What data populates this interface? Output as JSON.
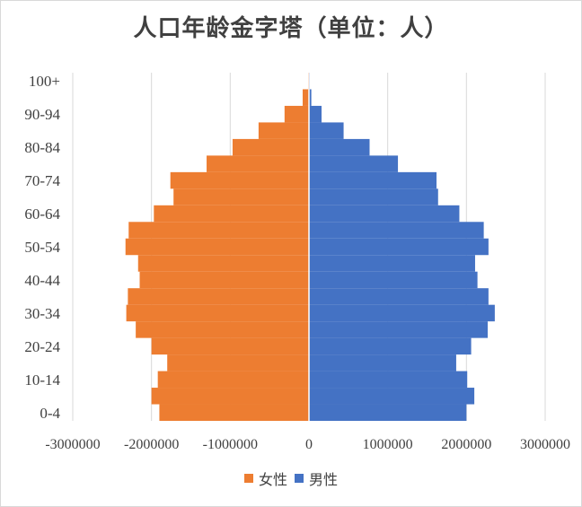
{
  "chart_data": {
    "type": "bar",
    "orientation": "horizontal",
    "title": "人口年龄金字塔（单位：人）",
    "categories": [
      "0-4",
      "5-9",
      "10-14",
      "15-19",
      "20-24",
      "25-29",
      "30-34",
      "35-39",
      "40-44",
      "45-49",
      "50-54",
      "55-59",
      "60-64",
      "65-69",
      "70-74",
      "75-79",
      "80-84",
      "85-89",
      "90-94",
      "95-99",
      "100+"
    ],
    "category_tick_labels": [
      "0-4",
      "10-14",
      "20-24",
      "30-34",
      "40-44",
      "50-54",
      "60-64",
      "70-74",
      "80-84",
      "90-94",
      "100+"
    ],
    "series": [
      {
        "name": "女性",
        "color": "#ED7D31",
        "values": [
          -1900000,
          -2000000,
          -1920000,
          -1800000,
          -2000000,
          -2200000,
          -2320000,
          -2300000,
          -2150000,
          -2170000,
          -2330000,
          -2290000,
          -1970000,
          -1720000,
          -1760000,
          -1300000,
          -970000,
          -640000,
          -310000,
          -80000,
          -10000
        ]
      },
      {
        "name": "男性",
        "color": "#4472C4",
        "values": [
          2000000,
          2100000,
          2010000,
          1870000,
          2060000,
          2270000,
          2360000,
          2280000,
          2140000,
          2110000,
          2280000,
          2220000,
          1910000,
          1640000,
          1620000,
          1130000,
          770000,
          440000,
          160000,
          30000,
          10000
        ]
      }
    ],
    "xlim": [
      -3000000,
      3000000
    ],
    "xticks": [
      -3000000,
      -2000000,
      -1000000,
      0,
      1000000,
      2000000,
      3000000
    ],
    "xtick_labels": [
      "-3000000",
      "-2000000",
      "-1000000",
      "0",
      "1000000",
      "2000000",
      "3000000"
    ],
    "grid": "vertical",
    "legend_position": "bottom"
  }
}
